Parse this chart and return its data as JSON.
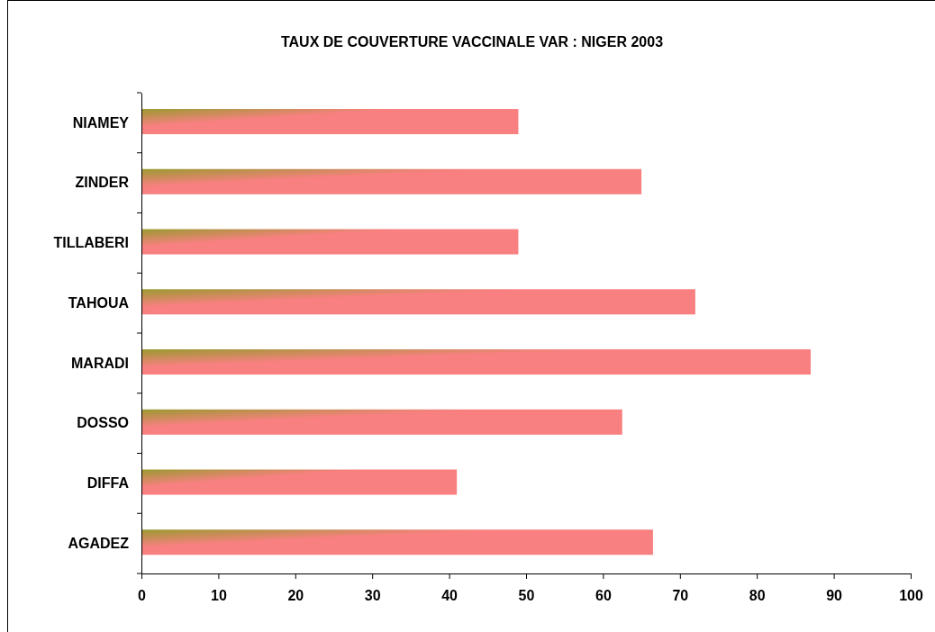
{
  "chart_data": {
    "type": "bar",
    "orientation": "horizontal",
    "title": "TAUX DE COUVERTURE VACCINALE VAR : NIGER 2003",
    "categories": [
      "NIAMEY",
      "ZINDER",
      "TILLABERI",
      "TAHOUA",
      "MARADI",
      "DOSSO",
      "DIFFA",
      "AGADEZ"
    ],
    "values": [
      49,
      65,
      49,
      72,
      87,
      62.5,
      41,
      66.5
    ],
    "color": "#f88080",
    "xlim": [
      0,
      100
    ],
    "xticks": [
      0,
      10,
      20,
      30,
      40,
      50,
      60,
      70,
      80,
      90,
      100
    ],
    "grid": false
  }
}
